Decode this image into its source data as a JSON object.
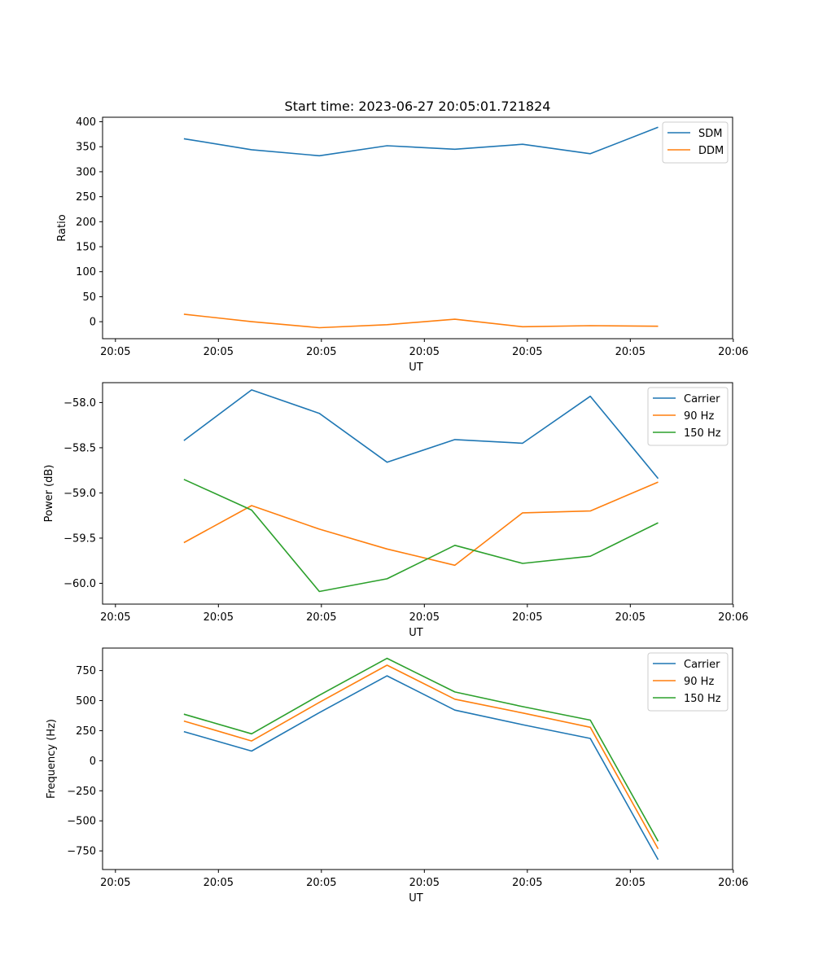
{
  "figure": {
    "title": "Start time: 2023-06-27 20:05:01.721824"
  },
  "chart_data": [
    {
      "type": "line",
      "xlabel": "UT",
      "ylabel": "Ratio",
      "x_ticks": [
        "20:05",
        "20:05",
        "20:05",
        "20:05",
        "20:05",
        "20:05",
        "20:06"
      ],
      "y_ticks": [
        0,
        50,
        100,
        150,
        200,
        250,
        300,
        350,
        400
      ],
      "ylim": [
        -34,
        409
      ],
      "x": [
        1,
        2,
        3,
        4,
        5,
        6,
        7,
        8
      ],
      "xlim": [
        -0.2,
        9.1
      ],
      "grid": false,
      "legend_position": "top-right",
      "series": [
        {
          "name": "SDM",
          "color": "#1f77b4",
          "values": [
            366,
            344,
            332,
            352,
            345,
            355,
            336,
            389
          ]
        },
        {
          "name": "DDM",
          "color": "#ff7f0e",
          "values": [
            15,
            0,
            -12,
            -6,
            5,
            -10,
            -8,
            -9
          ]
        }
      ]
    },
    {
      "type": "line",
      "xlabel": "UT",
      "ylabel": "Power (dB)",
      "x_ticks": [
        "20:05",
        "20:05",
        "20:05",
        "20:05",
        "20:05",
        "20:05",
        "20:06"
      ],
      "y_ticks": [
        -58.0,
        -58.5,
        -59.0,
        -59.5,
        -60.0
      ],
      "y_tick_labels": [
        "−58.0",
        "−58.5",
        "−59.0",
        "−59.5",
        "−60.0"
      ],
      "ylim": [
        -60.23,
        -57.78
      ],
      "x": [
        1,
        2,
        3,
        4,
        5,
        6,
        7,
        8
      ],
      "xlim": [
        -0.2,
        9.1
      ],
      "grid": false,
      "legend_position": "top-right",
      "series": [
        {
          "name": "Carrier",
          "color": "#1f77b4",
          "values": [
            -58.42,
            -57.86,
            -58.12,
            -58.66,
            -58.41,
            -58.45,
            -57.93,
            -58.84
          ]
        },
        {
          "name": "90 Hz",
          "color": "#ff7f0e",
          "values": [
            -59.55,
            -59.14,
            -59.4,
            -59.62,
            -59.8,
            -59.22,
            -59.2,
            -58.88
          ]
        },
        {
          "name": "150 Hz",
          "color": "#2ca02c",
          "values": [
            -58.85,
            -59.19,
            -60.09,
            -59.95,
            -59.58,
            -59.78,
            -59.7,
            -59.33
          ]
        }
      ]
    },
    {
      "type": "line",
      "xlabel": "UT",
      "ylabel": "Frequency (Hz)",
      "x_ticks": [
        "20:05",
        "20:05",
        "20:05",
        "20:05",
        "20:05",
        "20:05",
        "20:06"
      ],
      "y_ticks": [
        750,
        500,
        250,
        0,
        -250,
        -500,
        -750
      ],
      "y_tick_labels": [
        "750",
        "500",
        "250",
        "0",
        "−250",
        "−500",
        "−750"
      ],
      "ylim": [
        -905,
        937
      ],
      "x": [
        1,
        2,
        3,
        4,
        5,
        6,
        7,
        8
      ],
      "xlim": [
        -0.2,
        9.1
      ],
      "grid": false,
      "legend_position": "top-right",
      "series": [
        {
          "name": "Carrier",
          "color": "#1f77b4",
          "values": [
            242,
            80,
            400,
            706,
            421,
            300,
            185,
            -823
          ]
        },
        {
          "name": "90 Hz",
          "color": "#ff7f0e",
          "values": [
            330,
            164,
            485,
            795,
            512,
            397,
            278,
            -733
          ]
        },
        {
          "name": "150 Hz",
          "color": "#2ca02c",
          "values": [
            387,
            224,
            545,
            852,
            572,
            450,
            338,
            -670
          ]
        }
      ]
    }
  ]
}
